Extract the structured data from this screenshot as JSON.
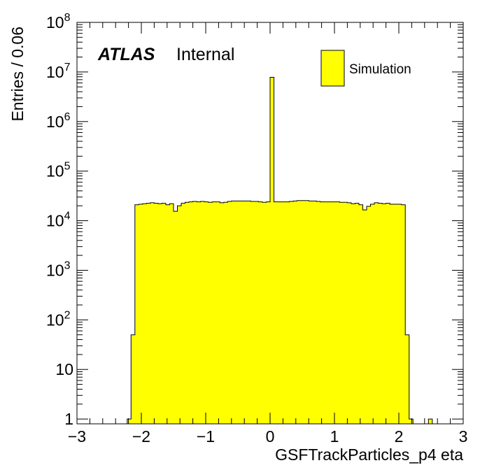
{
  "colors": {
    "fill": "#ffff00",
    "line": "#000000",
    "background": "#ffffff"
  },
  "chart_data": {
    "type": "bar",
    "subtype": "histogram",
    "xlabel": "GSFTrackParticles_p4 eta",
    "ylabel": "Entries / 0.06",
    "bin_width": 0.06,
    "xlim": [
      -3,
      3
    ],
    "ylim": [
      0.8,
      100000000
    ],
    "log_y": true,
    "grid": false,
    "x_ticks": [
      "−3",
      "−2",
      "−1",
      "0",
      "1",
      "2",
      "3"
    ],
    "x_tick_values": [
      -3,
      -2,
      -1,
      0,
      1,
      2,
      3
    ],
    "y_ticks": [
      {
        "value": 1,
        "base": "1",
        "exp": ""
      },
      {
        "value": 10,
        "base": "10",
        "exp": ""
      },
      {
        "value": 100,
        "base": "10",
        "exp": "2"
      },
      {
        "value": 1000,
        "base": "10",
        "exp": "3"
      },
      {
        "value": 10000,
        "base": "10",
        "exp": "4"
      },
      {
        "value": 100000,
        "base": "10",
        "exp": "5"
      },
      {
        "value": 1000000,
        "base": "10",
        "exp": "6"
      },
      {
        "value": 10000000,
        "base": "10",
        "exp": "7"
      },
      {
        "value": 100000000,
        "base": "10",
        "exp": "8"
      }
    ],
    "legend": {
      "position": "top-right",
      "entries": [
        {
          "name": "Simulation",
          "color": "#ffff00"
        }
      ]
    },
    "annotation": {
      "bold": "ATLAS",
      "plain": "Internal"
    },
    "bins": [
      {
        "x": -2.22,
        "y": 1
      },
      {
        "x": -2.16,
        "y": 50
      },
      {
        "x": -2.1,
        "y": 21000
      },
      {
        "x": -2.04,
        "y": 21500
      },
      {
        "x": -1.98,
        "y": 22000
      },
      {
        "x": -1.92,
        "y": 22500
      },
      {
        "x": -1.86,
        "y": 23000
      },
      {
        "x": -1.8,
        "y": 22500
      },
      {
        "x": -1.74,
        "y": 22000
      },
      {
        "x": -1.68,
        "y": 22500
      },
      {
        "x": -1.62,
        "y": 21000
      },
      {
        "x": -1.56,
        "y": 22000
      },
      {
        "x": -1.5,
        "y": 15500
      },
      {
        "x": -1.44,
        "y": 20000
      },
      {
        "x": -1.38,
        "y": 22500
      },
      {
        "x": -1.32,
        "y": 23500
      },
      {
        "x": -1.26,
        "y": 24000
      },
      {
        "x": -1.2,
        "y": 24500
      },
      {
        "x": -1.14,
        "y": 24000
      },
      {
        "x": -1.08,
        "y": 24500
      },
      {
        "x": -1.02,
        "y": 24000
      },
      {
        "x": -0.96,
        "y": 23500
      },
      {
        "x": -0.9,
        "y": 24000
      },
      {
        "x": -0.84,
        "y": 24000
      },
      {
        "x": -0.78,
        "y": 23000
      },
      {
        "x": -0.72,
        "y": 23500
      },
      {
        "x": -0.66,
        "y": 24500
      },
      {
        "x": -0.6,
        "y": 25000
      },
      {
        "x": -0.54,
        "y": 25000
      },
      {
        "x": -0.48,
        "y": 25000
      },
      {
        "x": -0.42,
        "y": 25000
      },
      {
        "x": -0.36,
        "y": 25000
      },
      {
        "x": -0.3,
        "y": 24500
      },
      {
        "x": -0.24,
        "y": 24500
      },
      {
        "x": -0.18,
        "y": 24000
      },
      {
        "x": -0.12,
        "y": 23500
      },
      {
        "x": -0.06,
        "y": 24000
      },
      {
        "x": 0.0,
        "y": 7800000
      },
      {
        "x": 0.06,
        "y": 24000
      },
      {
        "x": 0.12,
        "y": 24000
      },
      {
        "x": 0.18,
        "y": 24000
      },
      {
        "x": 0.24,
        "y": 24000
      },
      {
        "x": 0.3,
        "y": 24500
      },
      {
        "x": 0.36,
        "y": 25000
      },
      {
        "x": 0.42,
        "y": 25500
      },
      {
        "x": 0.48,
        "y": 25500
      },
      {
        "x": 0.54,
        "y": 25500
      },
      {
        "x": 0.6,
        "y": 25000
      },
      {
        "x": 0.66,
        "y": 25000
      },
      {
        "x": 0.72,
        "y": 24500
      },
      {
        "x": 0.78,
        "y": 24000
      },
      {
        "x": 0.84,
        "y": 24000
      },
      {
        "x": 0.9,
        "y": 24000
      },
      {
        "x": 0.96,
        "y": 24000
      },
      {
        "x": 1.02,
        "y": 24000
      },
      {
        "x": 1.08,
        "y": 23500
      },
      {
        "x": 1.14,
        "y": 23500
      },
      {
        "x": 1.2,
        "y": 23000
      },
      {
        "x": 1.26,
        "y": 22000
      },
      {
        "x": 1.32,
        "y": 22500
      },
      {
        "x": 1.38,
        "y": 21000
      },
      {
        "x": 1.44,
        "y": 16500
      },
      {
        "x": 1.5,
        "y": 19500
      },
      {
        "x": 1.56,
        "y": 21500
      },
      {
        "x": 1.62,
        "y": 23000
      },
      {
        "x": 1.68,
        "y": 22500
      },
      {
        "x": 1.74,
        "y": 22000
      },
      {
        "x": 1.8,
        "y": 22500
      },
      {
        "x": 1.86,
        "y": 21500
      },
      {
        "x": 1.92,
        "y": 21500
      },
      {
        "x": 1.98,
        "y": 21500
      },
      {
        "x": 2.04,
        "y": 21000
      },
      {
        "x": 2.1,
        "y": 50
      },
      {
        "x": 2.16,
        "y": 1
      },
      {
        "x": 2.46,
        "y": 1
      }
    ]
  }
}
